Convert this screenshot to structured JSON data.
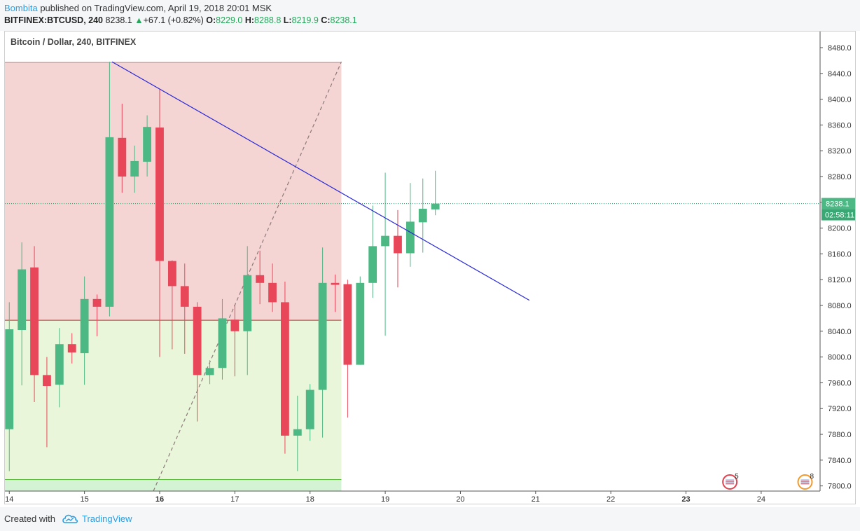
{
  "header": {
    "author": "Bombita",
    "published_text": "published on TradingView.com, April 19, 2018 20:01 MSK",
    "symbol": "BITFINEX:BTCUSD, 240",
    "last": "8238.1",
    "change_arrow": "▲",
    "change": "+67.1 (+0.82%)",
    "o_label": "O:",
    "o_value": "8229.0",
    "h_label": "H:",
    "h_value": "8288.8",
    "l_label": "L:",
    "l_value": "8219.9",
    "c_label": "C:",
    "c_value": "8238.1"
  },
  "footer": {
    "created_with": "Created with",
    "brand": "TradingView"
  },
  "colors": {
    "up": "#4cb884",
    "down": "#e8475a",
    "line": "#2727d6",
    "zone_red": "#f5d4d4",
    "zone_green": "#eaf6d9",
    "zone_green_deep": "#d4f3d4",
    "price_line": "#2e9e6e"
  },
  "chart_data": {
    "type": "candlestick",
    "title": "Bitcoin / Dollar, 240, BITFINEX",
    "y_ticks": [
      "8480.0",
      "8440.0",
      "8400.0",
      "8360.0",
      "8320.0",
      "8280.0",
      "8240.0",
      "8200.0",
      "8160.0",
      "8120.0",
      "8080.0",
      "8040.0",
      "8000.0",
      "7960.0",
      "7920.0",
      "7880.0",
      "7840.0",
      "7800.0"
    ],
    "ylim": [
      7792,
      8505
    ],
    "x_ticks": [
      "14",
      "15",
      "16",
      "17",
      "18",
      "19",
      "20",
      "21",
      "22",
      "23",
      "24"
    ],
    "x_tick_pos": [
      0,
      6,
      12,
      18,
      24,
      30,
      36,
      42,
      48,
      54,
      60
    ],
    "xlim": [
      -0.35,
      64.7
    ],
    "last_price_label": "8238.1",
    "countdown_label": "02:58:11",
    "last_price": 8238.1,
    "candles": [
      {
        "o": 7888,
        "h": 8085,
        "l": 7823,
        "c": 8043
      },
      {
        "o": 8042,
        "h": 8178,
        "l": 7956,
        "c": 8136
      },
      {
        "o": 8139,
        "h": 8172,
        "l": 7930,
        "c": 7972
      },
      {
        "o": 7972,
        "h": 8000,
        "l": 7860,
        "c": 7955
      },
      {
        "o": 7957,
        "h": 8045,
        "l": 7922,
        "c": 8020
      },
      {
        "o": 8020,
        "h": 8037,
        "l": 7990,
        "c": 8007
      },
      {
        "o": 8006,
        "h": 8125,
        "l": 7957,
        "c": 8090
      },
      {
        "o": 8090,
        "h": 8097,
        "l": 8032,
        "c": 8078
      },
      {
        "o": 8078,
        "h": 8458,
        "l": 8063,
        "c": 8341
      },
      {
        "o": 8340,
        "h": 8393,
        "l": 8255,
        "c": 8280
      },
      {
        "o": 8280,
        "h": 8328,
        "l": 8255,
        "c": 8304
      },
      {
        "o": 8303,
        "h": 8375,
        "l": 8280,
        "c": 8357
      },
      {
        "o": 8356,
        "h": 8415,
        "l": 8000,
        "c": 8149
      },
      {
        "o": 8149,
        "h": 8150,
        "l": 8012,
        "c": 8110
      },
      {
        "o": 8110,
        "h": 8145,
        "l": 8005,
        "c": 8078
      },
      {
        "o": 8078,
        "h": 8085,
        "l": 7900,
        "c": 7972
      },
      {
        "o": 7972,
        "h": 7995,
        "l": 7958,
        "c": 7983
      },
      {
        "o": 7983,
        "h": 8090,
        "l": 7965,
        "c": 8060
      },
      {
        "o": 8058,
        "h": 8080,
        "l": 7970,
        "c": 8040
      },
      {
        "o": 8040,
        "h": 8172,
        "l": 7972,
        "c": 8127
      },
      {
        "o": 8127,
        "h": 8165,
        "l": 8082,
        "c": 8115
      },
      {
        "o": 8115,
        "h": 8145,
        "l": 8070,
        "c": 8085
      },
      {
        "o": 8085,
        "h": 8117,
        "l": 7850,
        "c": 7878
      },
      {
        "o": 7878,
        "h": 7940,
        "l": 7823,
        "c": 7888
      },
      {
        "o": 7888,
        "h": 7958,
        "l": 7870,
        "c": 7949
      },
      {
        "o": 7949,
        "h": 8170,
        "l": 7875,
        "c": 8115
      },
      {
        "o": 8115,
        "h": 8128,
        "l": 8070,
        "c": 8112
      },
      {
        "o": 8113,
        "h": 8120,
        "l": 7906,
        "c": 7988
      },
      {
        "o": 7988,
        "h": 8125,
        "l": 7988,
        "c": 8115
      },
      {
        "o": 8115,
        "h": 8235,
        "l": 8092,
        "c": 8172
      },
      {
        "o": 8172,
        "h": 8286,
        "l": 8033,
        "c": 8188
      },
      {
        "o": 8188,
        "h": 8228,
        "l": 8108,
        "c": 8161
      },
      {
        "o": 8161,
        "h": 8270,
        "l": 8140,
        "c": 8210
      },
      {
        "o": 8209,
        "h": 8277,
        "l": 8162,
        "c": 8230
      },
      {
        "o": 8229,
        "h": 8289,
        "l": 8220,
        "c": 8238
      }
    ],
    "trendline": {
      "x1": 8.2,
      "y1": 8458,
      "x2": 41.5,
      "y2": 8088
    },
    "dashed_line": {
      "x1": 11.5,
      "y1": 7792,
      "x2": 26.5,
      "y2": 8458
    },
    "zone": {
      "x_end": 26.5,
      "top": 8457,
      "mid": 8057,
      "bottom": 7810
    },
    "event_markers": [
      {
        "label": "5",
        "x": 57.5
      },
      {
        "label": "8",
        "x": 63.5
      }
    ]
  }
}
